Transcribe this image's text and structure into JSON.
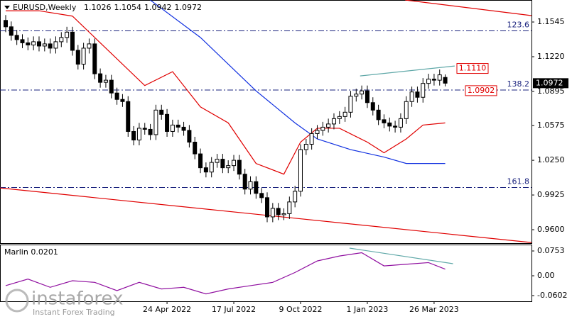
{
  "chart_data": {
    "type": "candlestick",
    "title": "EURUSD,Weekly",
    "indicator": "Marlin 0.0201",
    "categories": [
      null,
      null,
      null,
      null,
      null,
      null,
      null,
      null,
      null,
      null,
      null,
      null,
      null,
      null,
      null,
      null,
      null,
      null,
      null,
      null,
      null,
      null,
      null,
      null,
      null,
      null,
      null,
      null,
      null,
      "24 Apr 2022",
      null,
      null,
      null,
      null,
      null,
      null,
      null,
      null,
      null,
      null,
      null,
      "17 Jul 2022",
      null,
      null,
      null,
      null,
      null,
      null,
      null,
      null,
      null,
      null,
      null,
      "9 Oct 2022",
      null,
      null,
      null,
      null,
      null,
      null,
      null,
      null,
      null,
      null,
      null,
      "1 Jan 2023",
      null,
      null,
      null,
      null,
      null,
      null,
      null,
      null,
      null,
      null,
      null,
      "26 Mar 2023",
      null,
      null
    ],
    "open": [
      1.156,
      1.15,
      1.142,
      1.138,
      1.135,
      1.133,
      1.136,
      1.132,
      1.134,
      1.13,
      1.136,
      1.14,
      1.145,
      1.128,
      1.115,
      1.13,
      1.134,
      1.106,
      1.098,
      1.1,
      1.088,
      1.082,
      1.08,
      1.052,
      1.044,
      1.055,
      1.054,
      1.049,
      1.072,
      1.068,
      1.052,
      1.058,
      1.056,
      1.053,
      1.042,
      1.031,
      1.018,
      1.014,
      1.023,
      1.026,
      1.018,
      1.02,
      1.025,
      1.012,
      0.998,
      1.005,
      0.994,
      0.99,
      0.972,
      0.98,
      0.974,
      0.975,
      0.986,
      0.996,
      1.035,
      1.04,
      1.05,
      1.053,
      1.056,
      1.059,
      1.064,
      1.066,
      1.07,
      1.085,
      1.087,
      1.09,
      1.079,
      1.072,
      1.063,
      1.06,
      1.057,
      1.056,
      1.064,
      1.08,
      1.089,
      1.084,
      1.097,
      1.101,
      1.1,
      1.1026
    ],
    "high": [
      1.161,
      1.155,
      1.147,
      1.143,
      1.14,
      1.141,
      1.141,
      1.139,
      1.139,
      1.141,
      1.145,
      1.15,
      1.15,
      1.133,
      1.135,
      1.139,
      1.139,
      1.111,
      1.105,
      1.105,
      1.093,
      1.087,
      1.085,
      1.057,
      1.06,
      1.06,
      1.059,
      1.077,
      1.077,
      1.073,
      1.063,
      1.063,
      1.061,
      1.058,
      1.047,
      1.036,
      1.023,
      1.028,
      1.031,
      1.031,
      1.025,
      1.03,
      1.03,
      1.017,
      1.01,
      1.01,
      0.999,
      0.995,
      0.985,
      0.985,
      0.98,
      0.991,
      1.001,
      1.04,
      1.045,
      1.055,
      1.058,
      1.061,
      1.064,
      1.069,
      1.071,
      1.075,
      1.09,
      1.092,
      1.095,
      1.095,
      1.084,
      1.077,
      1.068,
      1.065,
      1.062,
      1.069,
      1.085,
      1.094,
      1.094,
      1.102,
      1.106,
      1.106,
      1.11,
      1.1054
    ],
    "low": [
      1.145,
      1.137,
      1.133,
      1.13,
      1.128,
      1.128,
      1.127,
      1.127,
      1.125,
      1.125,
      1.131,
      1.135,
      1.123,
      1.11,
      1.11,
      1.125,
      1.101,
      1.093,
      1.093,
      1.083,
      1.077,
      1.075,
      1.047,
      1.039,
      1.039,
      1.049,
      1.044,
      1.044,
      1.063,
      1.047,
      1.047,
      1.051,
      1.048,
      1.037,
      1.026,
      1.013,
      1.009,
      1.009,
      1.018,
      1.013,
      1.013,
      1.015,
      1.007,
      0.993,
      0.993,
      0.989,
      0.985,
      0.967,
      0.967,
      0.969,
      0.969,
      0.97,
      0.981,
      0.991,
      1.03,
      1.035,
      1.045,
      1.048,
      1.051,
      1.054,
      1.059,
      1.061,
      1.065,
      1.08,
      1.082,
      1.074,
      1.067,
      1.058,
      1.055,
      1.052,
      1.051,
      1.051,
      1.059,
      1.075,
      1.079,
      1.079,
      1.092,
      1.095,
      1.095,
      1.0942
    ],
    "close": [
      1.15,
      1.142,
      1.138,
      1.135,
      1.133,
      1.136,
      1.132,
      1.134,
      1.13,
      1.136,
      1.14,
      1.145,
      1.128,
      1.115,
      1.13,
      1.134,
      1.106,
      1.098,
      1.1,
      1.088,
      1.082,
      1.08,
      1.052,
      1.044,
      1.055,
      1.054,
      1.049,
      1.072,
      1.068,
      1.052,
      1.058,
      1.056,
      1.053,
      1.042,
      1.031,
      1.018,
      1.014,
      1.023,
      1.026,
      1.018,
      1.02,
      1.025,
      1.012,
      0.998,
      1.005,
      0.994,
      0.99,
      0.972,
      0.98,
      0.974,
      0.975,
      0.986,
      0.996,
      1.035,
      1.04,
      1.05,
      1.053,
      1.056,
      1.059,
      1.064,
      1.066,
      1.07,
      1.085,
      1.087,
      1.09,
      1.079,
      1.072,
      1.063,
      1.06,
      1.057,
      1.056,
      1.064,
      1.08,
      1.089,
      1.084,
      1.097,
      1.101,
      1.1,
      1.105,
      1.0972
    ],
    "up_color": "#ffffff",
    "down_color": "#000000",
    "ylim": [
      0.9474,
      1.1751
    ],
    "yticks": [
      1.1545,
      {
        "value": 1.122,
        "label": "1.1220"
      },
      1.0895,
      1.0575,
      {
        "value": 1.025,
        "label": "1.0250"
      },
      0.9925,
      {
        "value": 0.96,
        "label": "0.9600"
      }
    ],
    "lines": [
      {
        "color": "#e00000",
        "x": [
          0,
          6,
          12,
          17,
          25,
          30,
          35,
          40,
          45,
          50,
          53,
          56,
          60,
          65,
          68,
          72,
          75,
          79
        ],
        "values": [
          1.165,
          1.165,
          1.16,
          1.135,
          1.095,
          1.108,
          1.075,
          1.06,
          1.022,
          1.012,
          1.042,
          1.055,
          1.055,
          1.042,
          1.032,
          1.045,
          1.058,
          1.06
        ]
      },
      {
        "color": "#1030e0",
        "x": [
          26,
          35,
          45,
          52,
          56,
          62,
          68,
          72,
          79
        ],
        "values": [
          1.175,
          1.14,
          1.09,
          1.06,
          1.045,
          1.035,
          1.028,
          1.022,
          1.022
        ]
      },
      {
        "color": "#e00000",
        "x": [
          71.8,
          94.5
        ],
        "values": [
          1.1751,
          1.1605
        ]
      },
      {
        "color": "#e00000",
        "x": [
          -1,
          94.5
        ],
        "values": [
          0.9991,
          0.948
        ]
      },
      {
        "color": "#5fa8a8",
        "x": [
          63.7,
          80.7
        ],
        "values": [
          1.104,
          1.1133
        ]
      }
    ],
    "levels": [
      {
        "value": 1.1462,
        "label": "123.6"
      },
      {
        "value": 1.0908,
        "label": "138.2"
      },
      {
        "value": 0.9995,
        "label": "161.8"
      }
    ],
    "price_labels": [
      {
        "value": 1.111,
        "label": "1.1110"
      },
      {
        "value": 1.0902,
        "label": "1.0902"
      }
    ],
    "y2lim": [
      -0.0774,
      0.0947
    ],
    "y2ticks": [
      0.0753,
      {
        "value": 0,
        "label": "0.00"
      },
      -0.0602
    ],
    "indicator_lines": [
      {
        "color": "#9010a0",
        "axis": "y2",
        "x": [
          0,
          4,
          8,
          12,
          16,
          20,
          24,
          28,
          32,
          36,
          40,
          44,
          48,
          52,
          56,
          60,
          64,
          68,
          72,
          76,
          79
        ],
        "values": [
          -0.03,
          -0.01,
          -0.035,
          -0.015,
          -0.02,
          -0.045,
          -0.02,
          -0.04,
          -0.035,
          -0.055,
          -0.04,
          -0.03,
          -0.02,
          0.01,
          0.045,
          0.06,
          0.07,
          0.03,
          0.035,
          0.04,
          0.0201
        ]
      },
      {
        "color": "#5fa8a8",
        "axis": "y2",
        "x": [
          61.8,
          80.4
        ],
        "values": [
          0.0839,
          0.0366
        ]
      }
    ]
  },
  "logo": {
    "name": "instaforex",
    "tagline": "Instant Forex Trading"
  }
}
